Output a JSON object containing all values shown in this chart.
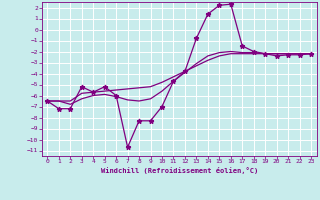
{
  "xlabel": "Windchill (Refroidissement éolien,°C)",
  "background_color": "#c8ecec",
  "grid_color": "#ffffff",
  "line_color": "#800080",
  "xlim": [
    -0.5,
    23.5
  ],
  "ylim": [
    -11.5,
    2.5
  ],
  "xticks": [
    0,
    1,
    2,
    3,
    4,
    5,
    6,
    7,
    8,
    9,
    10,
    11,
    12,
    13,
    14,
    15,
    16,
    17,
    18,
    19,
    20,
    21,
    22,
    23
  ],
  "yticks": [
    2,
    1,
    0,
    -1,
    -2,
    -3,
    -4,
    -5,
    -6,
    -7,
    -8,
    -9,
    -10,
    -11
  ],
  "line1_x": [
    0,
    1,
    2,
    3,
    4,
    5,
    6,
    7,
    8,
    9,
    10,
    11,
    12,
    13,
    14,
    15,
    16,
    17,
    18,
    19,
    20,
    21,
    22,
    23
  ],
  "line1_y": [
    -6.5,
    -7.2,
    -7.2,
    -5.2,
    -5.7,
    -5.2,
    -6.0,
    -10.7,
    -8.3,
    -8.3,
    -7.0,
    -4.7,
    -3.8,
    -0.8,
    1.4,
    2.2,
    2.3,
    -1.5,
    -2.0,
    -2.2,
    -2.4,
    -2.3,
    -2.3,
    -2.2
  ],
  "line2_x": [
    0,
    1,
    2,
    3,
    4,
    5,
    6,
    7,
    8,
    9,
    10,
    11,
    12,
    13,
    14,
    15,
    16,
    17,
    18,
    19,
    20,
    21,
    22,
    23
  ],
  "line2_y": [
    -6.5,
    -6.5,
    -6.5,
    -5.8,
    -5.7,
    -5.6,
    -5.5,
    -5.4,
    -5.3,
    -5.2,
    -4.8,
    -4.3,
    -3.8,
    -3.3,
    -2.8,
    -2.4,
    -2.2,
    -2.2,
    -2.2,
    -2.2,
    -2.2,
    -2.2,
    -2.2,
    -2.2
  ],
  "line3_x": [
    0,
    1,
    2,
    3,
    4,
    5,
    6,
    7,
    8,
    9,
    10,
    11,
    12,
    13,
    14,
    15,
    16,
    17,
    18,
    19,
    20,
    21,
    22,
    23
  ],
  "line3_y": [
    -6.5,
    -6.5,
    -6.8,
    -6.3,
    -6.0,
    -5.9,
    -6.1,
    -6.4,
    -6.5,
    -6.3,
    -5.6,
    -4.7,
    -3.9,
    -3.1,
    -2.4,
    -2.1,
    -2.0,
    -2.1,
    -2.1,
    -2.2,
    -2.2,
    -2.2,
    -2.2,
    -2.2
  ]
}
